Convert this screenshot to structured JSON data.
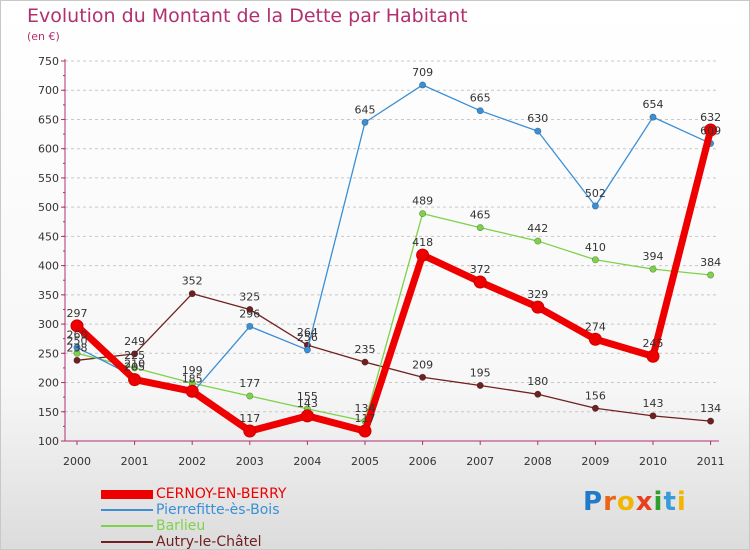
{
  "title": "Evolution du Montant de la Dette par Habitant",
  "subtitle": "(en €)",
  "logo": {
    "text": "Proxiti",
    "colors": [
      "#1f7ac9",
      "#e8651a",
      "#f2b600",
      "#e83f1f",
      "#2f9e2f",
      "#3a9bd9",
      "#f2b600"
    ]
  },
  "chart_data": {
    "type": "line",
    "title": "Evolution du Montant de la Dette par Habitant",
    "subtitle": "(en €)",
    "xlabel": "",
    "ylabel": "",
    "x": [
      "2000",
      "2001",
      "2002",
      "2003",
      "2004",
      "2005",
      "2006",
      "2007",
      "2008",
      "2009",
      "2010",
      "2011"
    ],
    "yticks": [
      100,
      150,
      200,
      250,
      300,
      350,
      400,
      450,
      500,
      550,
      600,
      650,
      700,
      750
    ],
    "ylim": [
      100,
      750
    ],
    "grid": "horizontal dashed",
    "legend_position": "bottom-left",
    "series": [
      {
        "name": "CERNOY-EN-BERRY",
        "color": "#ee0000",
        "values": [
          297,
          205,
          185,
          117,
          143,
          117,
          418,
          372,
          329,
          274,
          245,
          632
        ],
        "labels": [
          "297",
          "205",
          "185",
          "117",
          "143",
          "117",
          "418",
          "372",
          "329",
          "274",
          "245",
          "632"
        ]
      },
      {
        "name": "Pierrefitte-ès-Bois",
        "color": "#3a8fd6",
        "values": [
          260,
          210,
          182,
          296,
          256,
          645,
          709,
          665,
          630,
          502,
          654,
          609
        ],
        "labels": [
          "260",
          "210",
          "",
          "296",
          "256",
          "645",
          "709",
          "665",
          "630",
          "502",
          "654",
          "609"
        ]
      },
      {
        "name": "Barlieu",
        "color": "#7ed24a",
        "values": [
          250,
          225,
          199,
          177,
          155,
          134,
          489,
          465,
          442,
          410,
          394,
          384
        ],
        "labels": [
          "250",
          "225",
          "199",
          "177",
          "155",
          "134",
          "489",
          "465",
          "442",
          "410",
          "394",
          "384"
        ]
      },
      {
        "name": "Autry-le-Châtel",
        "color": "#702020",
        "values": [
          238,
          249,
          352,
          325,
          264,
          235,
          209,
          195,
          180,
          156,
          143,
          134
        ],
        "labels": [
          "238",
          "249",
          "352",
          "325",
          "264",
          "235",
          "209",
          "195",
          "180",
          "156",
          "143",
          "134"
        ]
      }
    ]
  }
}
